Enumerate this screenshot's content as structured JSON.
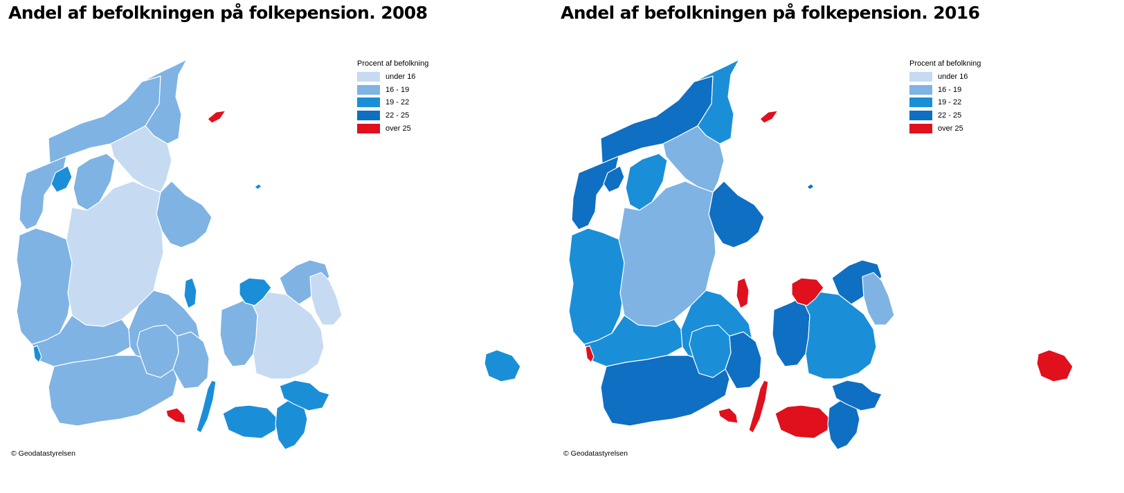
{
  "maps": [
    {
      "title": "Andel af befolkningen på folkepension. 2008",
      "legend_title": "Procent af befolkning",
      "copyright": "© Geodatastyrelsen",
      "region_classes": {
        "nordjylland_west": 1,
        "nordjylland_north": 1,
        "nordjylland_east": 0,
        "thy": 1,
        "mors": 2,
        "salling": 1,
        "vestjylland": 1,
        "midtjylland": 0,
        "djursland": 1,
        "sydvestjylland": 1,
        "trekant": 1,
        "sonderjylland": 1,
        "fyn_west": 1,
        "fyn_east": 1,
        "sjaelland_west": 1,
        "sjaelland_mid": 0,
        "odsherred": 2,
        "nordsjaelland": 1,
        "kobenhavn": 0,
        "samso": 2,
        "langeland": 2,
        "aero": 4,
        "lolland": 2,
        "falster": 2,
        "mon": 2,
        "laeso": 4,
        "anholt": 2,
        "bornholm": 2,
        "fano": 2
      }
    },
    {
      "title": "Andel af befolkningen på folkepension. 2016",
      "legend_title": "Procent af befolkning",
      "copyright": "© Geodatastyrelsen",
      "region_classes": {
        "nordjylland_west": 3,
        "nordjylland_north": 2,
        "nordjylland_east": 1,
        "thy": 3,
        "mors": 3,
        "salling": 2,
        "vestjylland": 2,
        "midtjylland": 1,
        "djursland": 3,
        "sydvestjylland": 2,
        "trekant": 2,
        "sonderjylland": 3,
        "fyn_west": 2,
        "fyn_east": 3,
        "sjaelland_west": 3,
        "sjaelland_mid": 2,
        "odsherred": 4,
        "nordsjaelland": 3,
        "kobenhavn": 1,
        "samso": 4,
        "langeland": 4,
        "aero": 4,
        "lolland": 4,
        "falster": 3,
        "mon": 3,
        "laeso": 4,
        "anholt": 3,
        "bornholm": 4,
        "fano": 4
      }
    }
  ],
  "legend": [
    {
      "label": "under 16",
      "color": "#c6dbf2"
    },
    {
      "label": "16 - 19",
      "color": "#7fb3e3"
    },
    {
      "label": "19 - 22",
      "color": "#1a8fd8"
    },
    {
      "label": "22 - 25",
      "color": "#0f6fc2"
    },
    {
      "label": "over 25",
      "color": "#e0101d"
    }
  ]
}
